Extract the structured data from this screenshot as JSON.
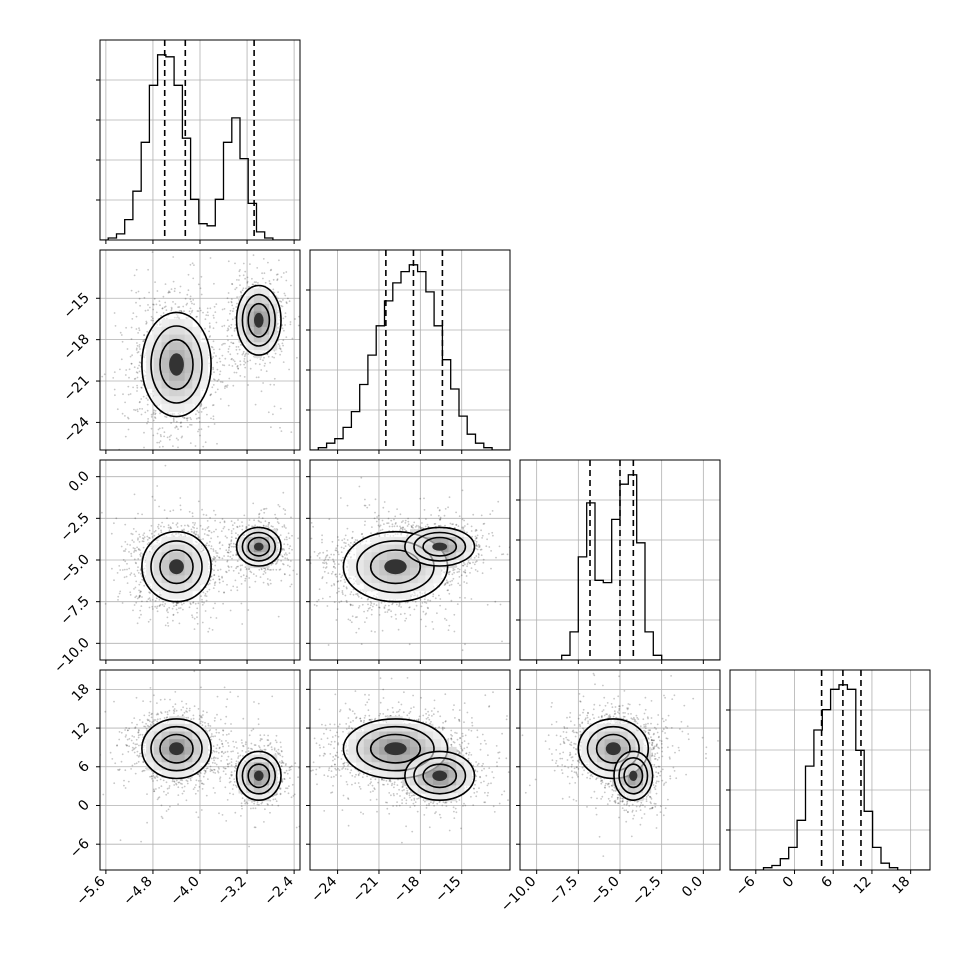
{
  "chart_data": {
    "type": "corner",
    "title": "",
    "parameters": [
      {
        "label": "",
        "range": [
          -5.7,
          -2.3
        ],
        "ticks": [
          -5.6,
          -4.8,
          -4.0,
          -3.2,
          -2.4
        ],
        "tick_labels": [
          "−5.6",
          "−4.8",
          "−4.0",
          "−3.2",
          "−2.4"
        ],
        "quantiles": [
          -4.6,
          -4.25,
          -3.08
        ]
      },
      {
        "label": "",
        "range": [
          -26,
          -11.5
        ],
        "ticks": [
          -24,
          -21,
          -18,
          -15
        ],
        "tick_labels": [
          "−24",
          "−21",
          "−18",
          "−15"
        ],
        "quantiles": [
          -20.5,
          -18.5,
          -16.4
        ]
      },
      {
        "label": "",
        "range": [
          -11,
          1
        ],
        "ticks": [
          -10.0,
          -7.5,
          -5.0,
          -2.5,
          0.0
        ],
        "tick_labels": [
          "−10.0",
          "−7.5",
          "−5.0",
          "−2.5",
          "0.0"
        ],
        "quantiles": [
          -6.8,
          -5.0,
          -4.2
        ]
      },
      {
        "label": "",
        "range": [
          -10,
          21
        ],
        "ticks": [
          -6,
          0,
          6,
          12,
          18
        ],
        "tick_labels": [
          "−6",
          "0",
          "6",
          "12",
          "18"
        ],
        "quantiles": [
          4.2,
          7.5,
          10.3
        ]
      }
    ],
    "histograms": [
      {
        "param": 0,
        "bin_edges": [
          -5.7,
          -5.56,
          -5.42,
          -5.28,
          -5.14,
          -5.0,
          -4.86,
          -4.72,
          -4.58,
          -4.44,
          -4.3,
          -4.16,
          -4.02,
          -3.88,
          -3.74,
          -3.6,
          -3.46,
          -3.32,
          -3.18,
          -3.04,
          -2.9,
          -2.76,
          -2.62,
          -2.48,
          -2.34
        ],
        "counts": [
          0.0,
          0.01,
          0.03,
          0.1,
          0.24,
          0.48,
          0.76,
          0.91,
          0.9,
          0.76,
          0.5,
          0.2,
          0.08,
          0.07,
          0.2,
          0.48,
          0.6,
          0.4,
          0.18,
          0.04,
          0.01,
          0.0,
          0.0,
          0.0
        ]
      },
      {
        "param": 1,
        "bin_edges": [
          -26,
          -25.4,
          -24.8,
          -24.2,
          -23.6,
          -23,
          -22.4,
          -21.8,
          -21.2,
          -20.6,
          -20,
          -19.4,
          -18.8,
          -18.2,
          -17.6,
          -17,
          -16.4,
          -15.8,
          -15.2,
          -14.6,
          -14,
          -13.4,
          -12.8,
          -12.2,
          -11.6
        ],
        "counts": [
          0.0,
          0.01,
          0.03,
          0.05,
          0.1,
          0.17,
          0.29,
          0.42,
          0.55,
          0.66,
          0.74,
          0.79,
          0.82,
          0.79,
          0.7,
          0.55,
          0.4,
          0.27,
          0.15,
          0.07,
          0.03,
          0.01,
          0.0,
          0.0
        ]
      },
      {
        "param": 2,
        "bin_edges": [
          -11,
          -10.5,
          -10,
          -9.5,
          -9,
          -8.5,
          -8,
          -7.5,
          -7,
          -6.5,
          -6,
          -5.5,
          -5,
          -4.5,
          -4,
          -3.5,
          -3,
          -2.5,
          -2,
          -1.5,
          -1,
          -0.5,
          0,
          0.5,
          1
        ],
        "counts": [
          0.0,
          0.0,
          0.0,
          0.0,
          0.0,
          0.02,
          0.12,
          0.44,
          0.67,
          0.34,
          0.33,
          0.6,
          0.75,
          0.79,
          0.5,
          0.12,
          0.02,
          0.0,
          0.0,
          0.0,
          0.0,
          0.0,
          0.0,
          0.0
        ]
      },
      {
        "param": 3,
        "bin_edges": [
          -10,
          -8.7,
          -7.4,
          -6.1,
          -4.8,
          -3.5,
          -2.2,
          -0.9,
          0.4,
          1.7,
          3,
          4.3,
          5.6,
          6.9,
          8.2,
          9.5,
          10.8,
          12.1,
          13.4,
          14.7,
          16,
          17.3,
          18.6,
          19.9,
          21.2
        ],
        "counts": [
          0.0,
          0.0,
          0.0,
          0.0,
          0.01,
          0.02,
          0.05,
          0.1,
          0.22,
          0.46,
          0.62,
          0.71,
          0.8,
          0.82,
          0.8,
          0.53,
          0.26,
          0.1,
          0.03,
          0.01,
          0.0,
          0.0,
          0.0,
          0.0
        ]
      }
    ],
    "joint_components": [
      {
        "weight": 0.65,
        "mean": [
          -4.4,
          -19.8,
          -5.4,
          8.8
        ],
        "sd": [
          0.28,
          1.8,
          1.0,
          2.2
        ]
      },
      {
        "weight": 0.35,
        "mean": [
          -3.0,
          -16.6,
          -4.2,
          4.6
        ],
        "sd": [
          0.18,
          1.2,
          0.55,
          1.8
        ]
      }
    ],
    "grid": true
  }
}
